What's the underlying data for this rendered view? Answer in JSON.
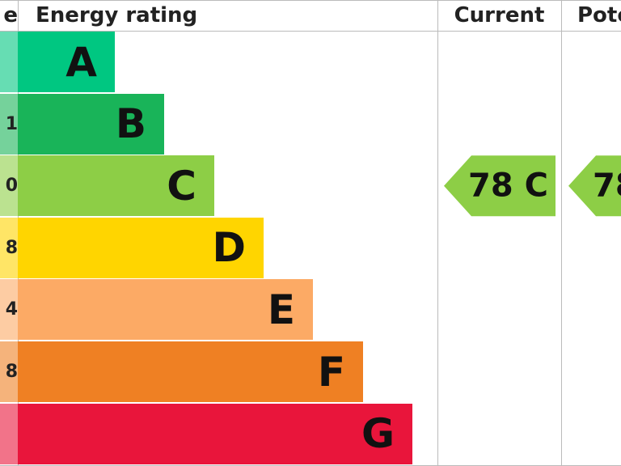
{
  "header": {
    "score": "e",
    "rating": "Energy rating",
    "current": "Current",
    "potential": "Pote"
  },
  "bands": [
    {
      "letter": "A",
      "score": "",
      "color": "#00c781",
      "light": "#66ddb3"
    },
    {
      "letter": "B",
      "score": "1",
      "color": "#19b459",
      "light": "#75d29b"
    },
    {
      "letter": "C",
      "score": "0",
      "color": "#8dce46",
      "light": "#bbe290"
    },
    {
      "letter": "D",
      "score": "8",
      "color": "#ffd500",
      "light": "#ffe566"
    },
    {
      "letter": "E",
      "score": "4",
      "color": "#fcaa65",
      "light": "#fdcca3"
    },
    {
      "letter": "F",
      "score": "8",
      "color": "#ef8023",
      "light": "#f5b37b"
    },
    {
      "letter": "G",
      "score": "",
      "color": "#e9153b",
      "light": "#f27389"
    }
  ],
  "current": {
    "label": "78 C",
    "band": 2
  },
  "potential": {
    "label": "78",
    "band": 2
  }
}
